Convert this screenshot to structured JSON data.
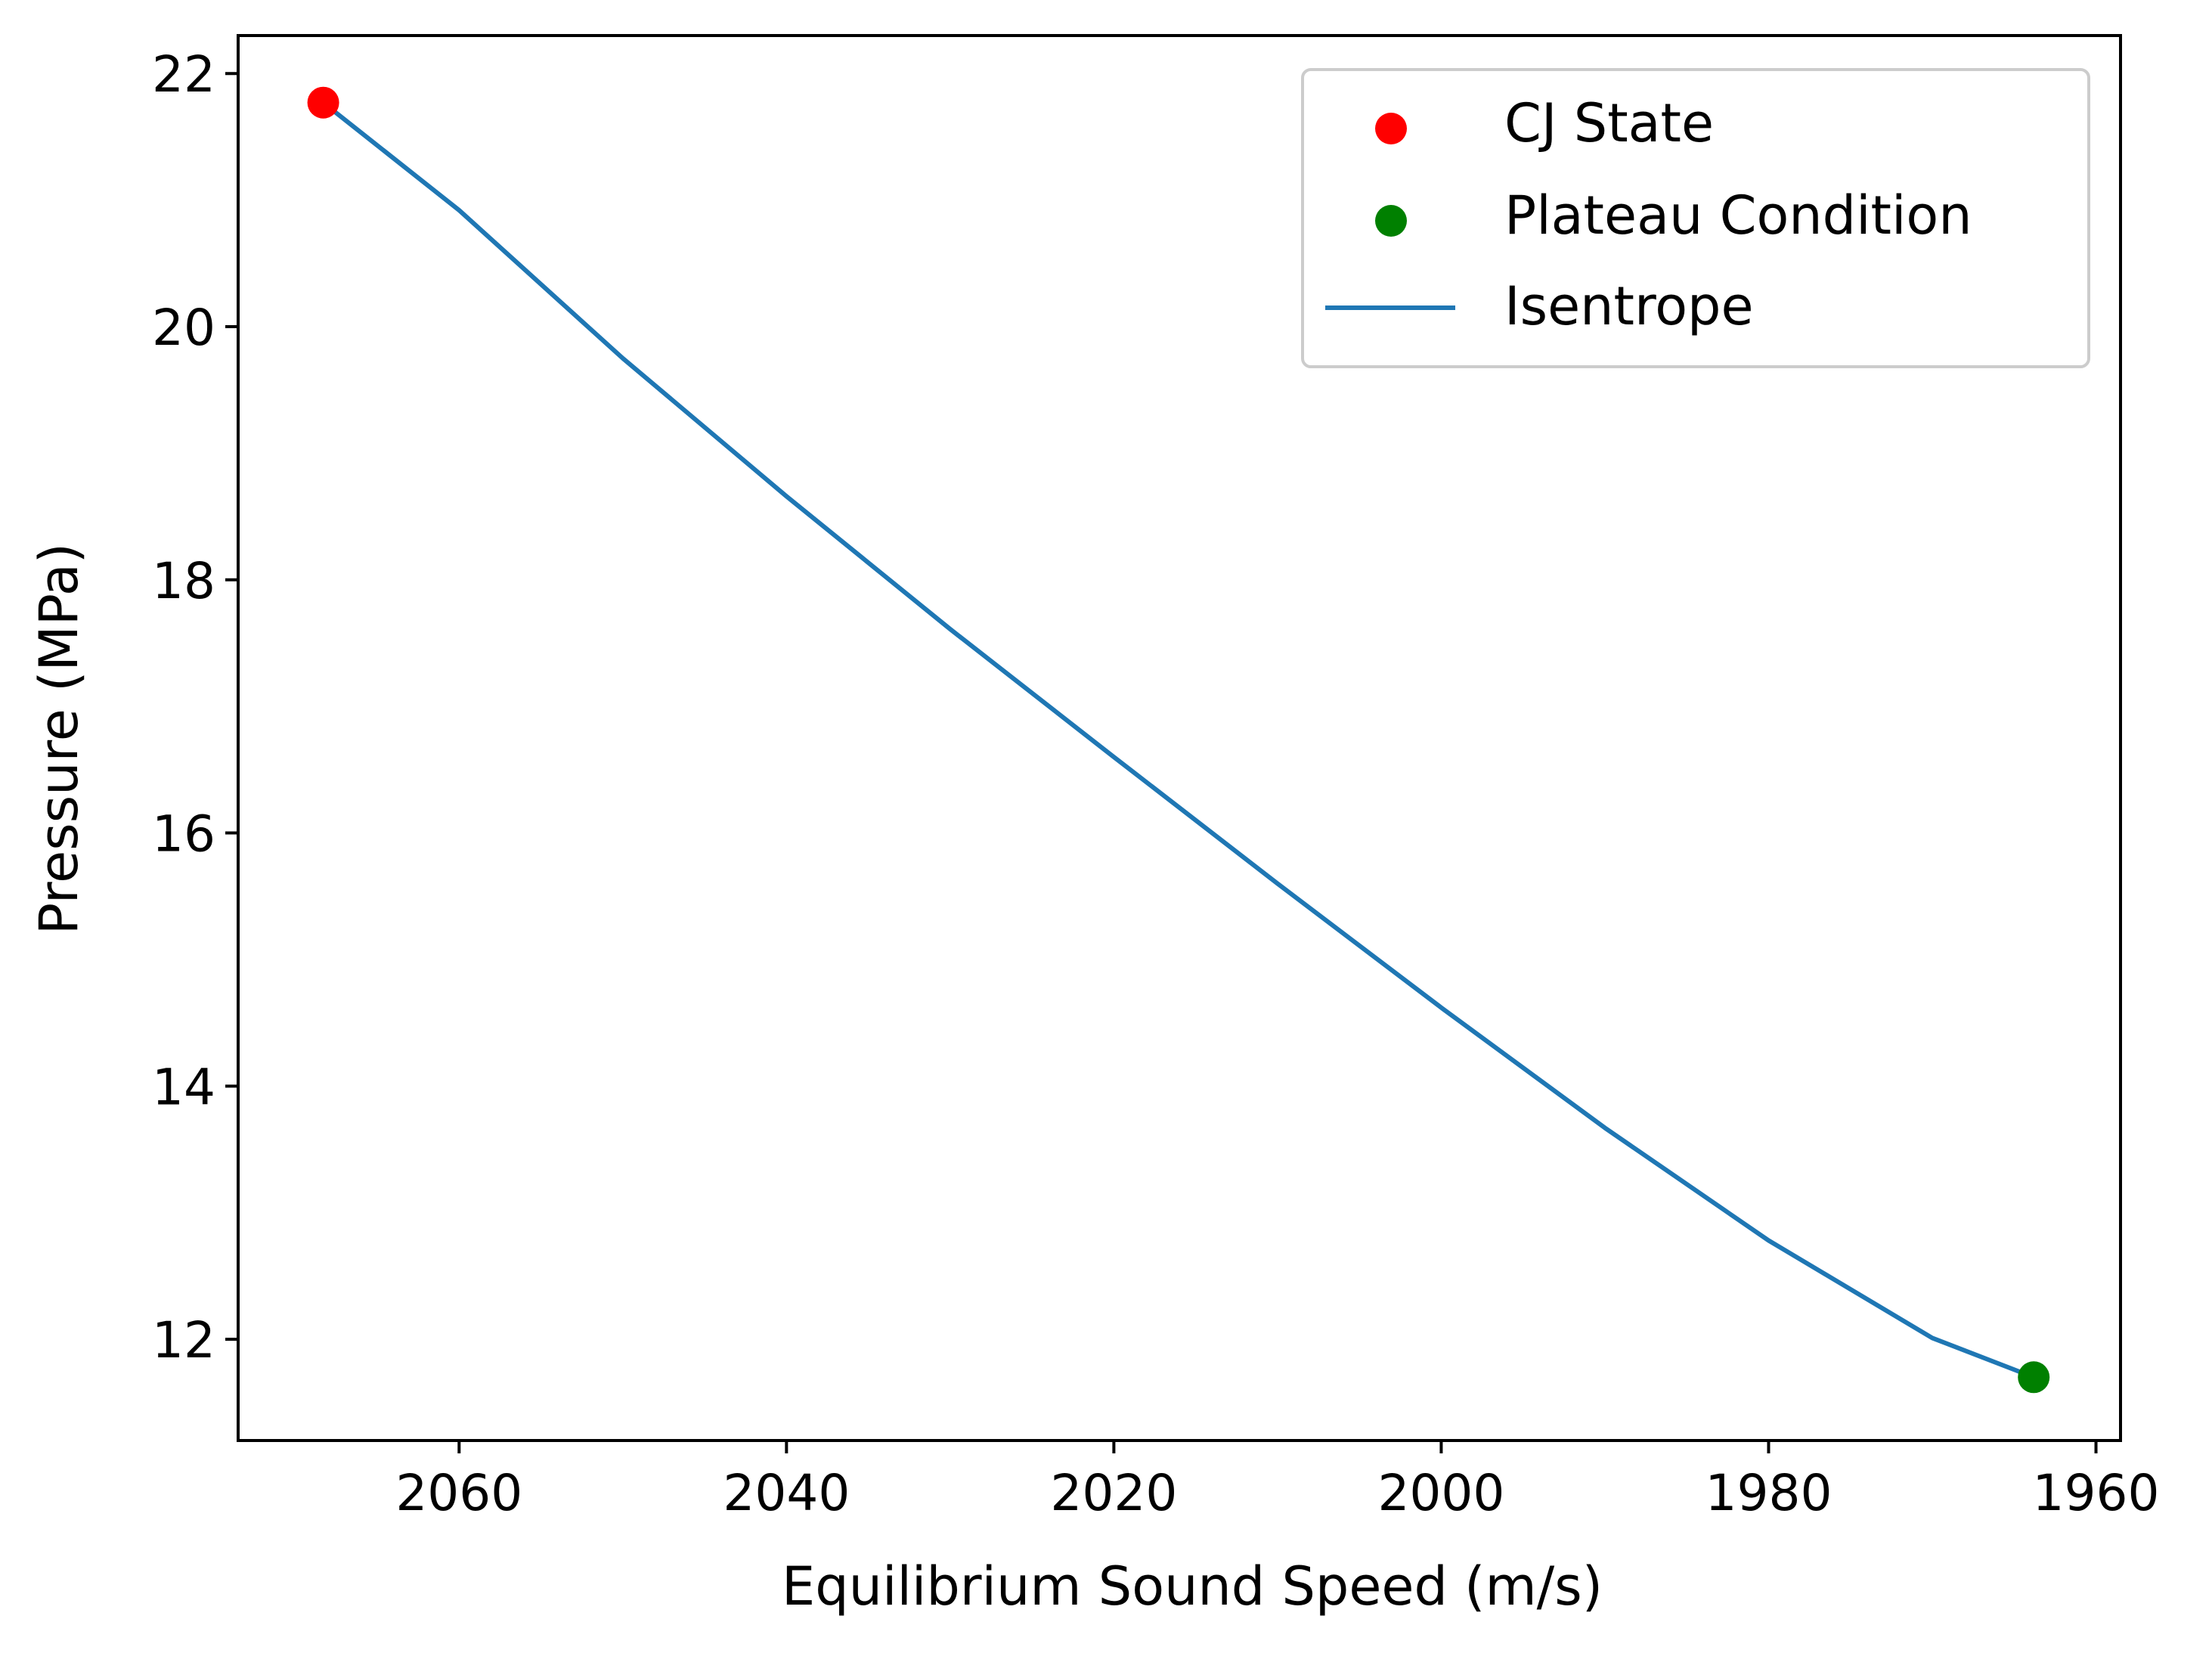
{
  "chart_data": {
    "type": "line+scatter",
    "xlabel": "Equilibrium Sound Speed (m/s)",
    "ylabel": "Pressure (MPa)",
    "x_inverted": true,
    "xlim": [
      2073.5,
      1958.5
    ],
    "ylim": [
      11.2,
      22.3
    ],
    "xticks": [
      2060,
      2040,
      2020,
      2000,
      1980,
      1960
    ],
    "yticks": [
      12,
      14,
      16,
      18,
      20,
      22
    ],
    "grid": false,
    "legend_position": "upper right",
    "series": [
      {
        "name": "CJ State",
        "kind": "scatter",
        "color": "#ff0000",
        "points": [
          [
            2068.3,
            21.77
          ]
        ]
      },
      {
        "name": "Plateau Condition",
        "kind": "scatter",
        "color": "#008000",
        "points": [
          [
            1963.8,
            11.7
          ]
        ]
      },
      {
        "name": "Isentrope",
        "kind": "line",
        "color": "#1f77b4",
        "points": [
          [
            2068.3,
            21.77
          ],
          [
            2060,
            20.92
          ],
          [
            2050,
            19.75
          ],
          [
            2040,
            18.66
          ],
          [
            2030,
            17.61
          ],
          [
            2020,
            16.6
          ],
          [
            2010,
            15.6
          ],
          [
            2000,
            14.62
          ],
          [
            1990,
            13.67
          ],
          [
            1980,
            12.78
          ],
          [
            1970,
            12.01
          ],
          [
            1963.8,
            11.7
          ]
        ]
      }
    ]
  }
}
